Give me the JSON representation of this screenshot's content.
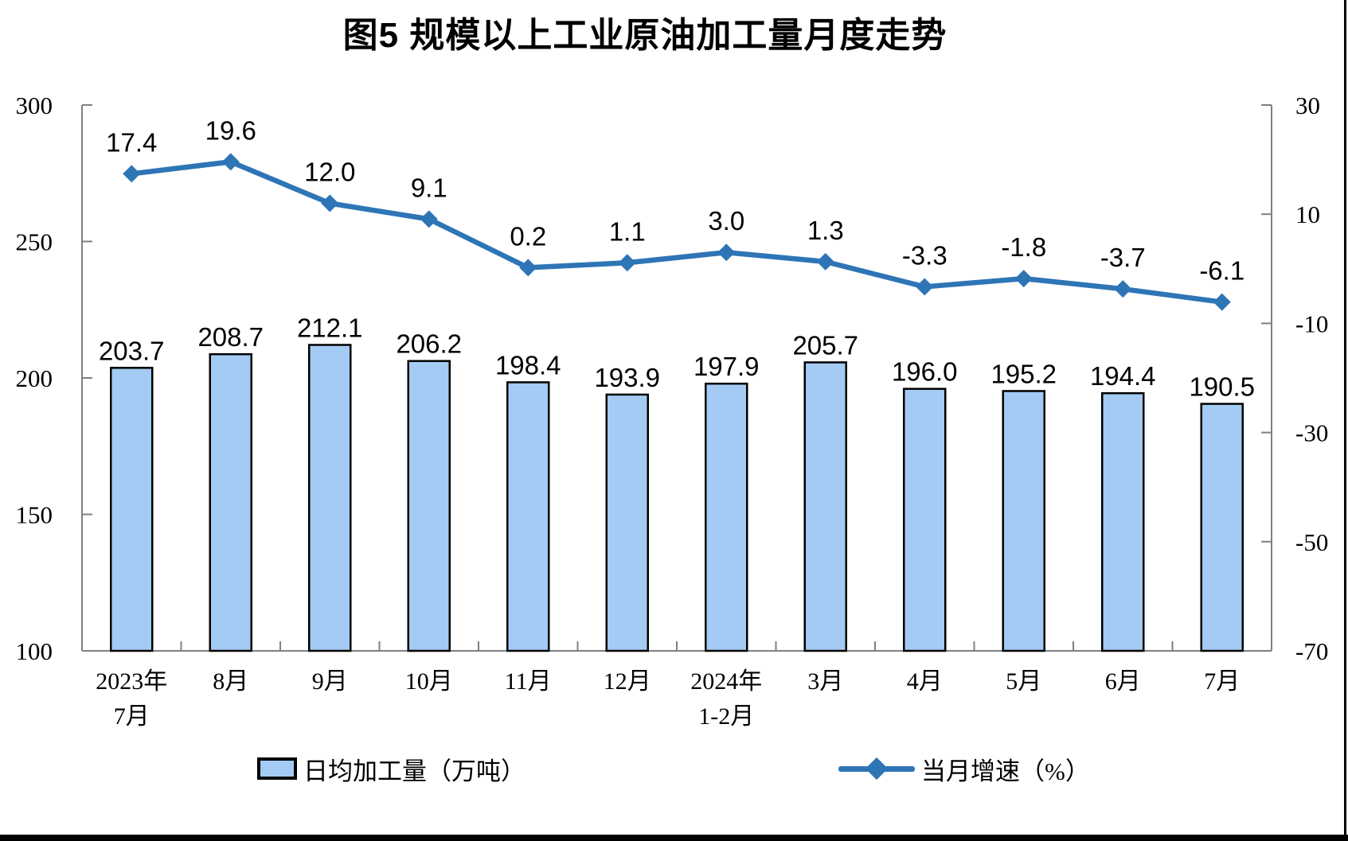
{
  "chart_data": {
    "type": "combo-bar-line",
    "title": "图5  规模以上工业原油加工量月度走势",
    "categories": [
      [
        "2023年",
        "7月"
      ],
      [
        "8月"
      ],
      [
        "9月"
      ],
      [
        "10月"
      ],
      [
        "11月"
      ],
      [
        "12月"
      ],
      [
        "2024年",
        "1-2月"
      ],
      [
        "3月"
      ],
      [
        "4月"
      ],
      [
        "5月"
      ],
      [
        "6月"
      ],
      [
        "7月"
      ]
    ],
    "series": [
      {
        "name": "日均加工量（万吨）",
        "type": "bar",
        "axis": "left",
        "values": [
          203.7,
          208.7,
          212.1,
          206.2,
          198.4,
          193.9,
          197.9,
          205.7,
          196.0,
          195.2,
          194.4,
          190.5
        ],
        "labels": [
          "203.7",
          "208.7",
          "212.1",
          "206.2",
          "198.4",
          "193.9",
          "197.9",
          "205.7",
          "196.0",
          "195.2",
          "194.4",
          "190.5"
        ]
      },
      {
        "name": "当月增速（%）",
        "type": "line",
        "axis": "right",
        "values": [
          17.4,
          19.6,
          12.0,
          9.1,
          0.2,
          1.1,
          3.0,
          1.3,
          -3.3,
          -1.8,
          -3.7,
          -6.1
        ],
        "labels": [
          "17.4",
          "19.6",
          "12.0",
          "9.1",
          "0.2",
          "1.1",
          "3.0",
          "1.3",
          "-3.3",
          "-1.8",
          "-3.7",
          "-6.1"
        ]
      }
    ],
    "left_axis": {
      "min": 100,
      "max": 300,
      "ticks": [
        "300",
        "250",
        "200",
        "150",
        "100"
      ]
    },
    "right_axis": {
      "min": -70,
      "max": 30,
      "ticks": [
        "30",
        "10",
        "-10",
        "-30",
        "-50",
        "-70"
      ]
    },
    "legend_position": "bottom",
    "grid": false
  },
  "legend": {
    "bar_label": "日均加工量（万吨）",
    "line_label": "当月增速（%）"
  },
  "colors": {
    "bar_fill": "#A3CBF4",
    "bar_stroke": "#000000",
    "line": "#2E75B6",
    "axis": "#808080",
    "text": "#000000"
  }
}
